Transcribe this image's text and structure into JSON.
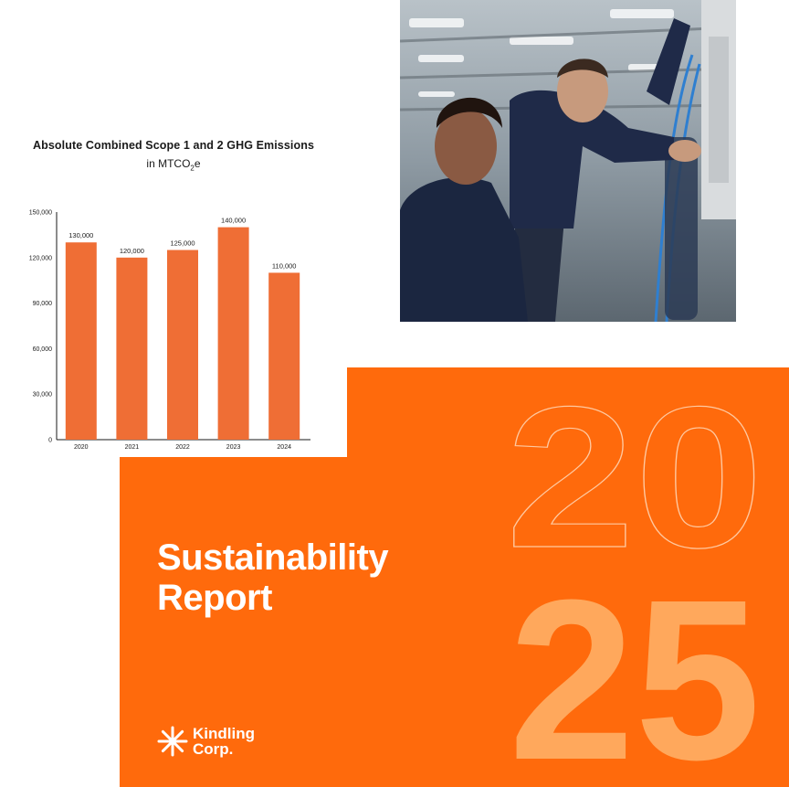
{
  "chart_data": {
    "type": "bar",
    "title": "Absolute Combined Scope 1 and 2 GHG Emissions",
    "subtitle_prefix": "in MTCO",
    "subtitle_sub": "2",
    "subtitle_suffix": "e",
    "categories": [
      "2020",
      "2021",
      "2022",
      "2023",
      "2024"
    ],
    "values": [
      130000,
      120000,
      125000,
      140000,
      110000
    ],
    "data_labels": [
      "130,000",
      "120,000",
      "125,000",
      "140,000",
      "110,000"
    ],
    "y_ticks": [
      0,
      30000,
      60000,
      90000,
      120000,
      150000
    ],
    "y_tick_labels": [
      "0",
      "30,000",
      "60,000",
      "90,000",
      "120,000",
      "150,000"
    ],
    "ylim": [
      0,
      150000
    ],
    "grid": false,
    "bar_color": "#ef6e35"
  },
  "report": {
    "title_line1": "Sustainability",
    "title_line2": "Report",
    "year_top": "20",
    "year_bottom": "25",
    "background_color": "#ff6a0c",
    "year_fill_color": "#ffa85c"
  },
  "brand": {
    "name_line1": "Kindling",
    "name_line2": "Corp.",
    "icon": "sparkle-icon"
  },
  "photo": {
    "description_icon": "workshop-photo"
  }
}
